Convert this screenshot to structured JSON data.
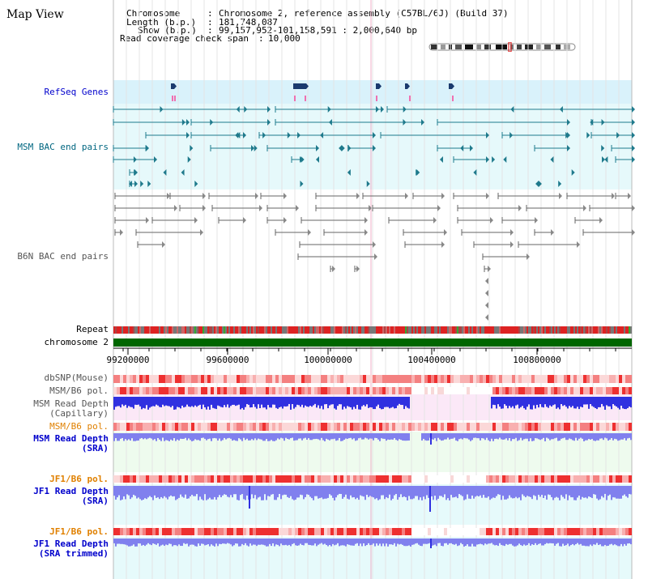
{
  "page": {
    "title": "Map View"
  },
  "info": {
    "chromosome_key": "Chromosome",
    "chromosome_val": "Chromosome 2, reference assembly (C57BL/6J) (Build 37)",
    "length_key": "Length (b.p.)",
    "length_val": "181,748,087",
    "show_key": "Show (b.p.)",
    "show_val": "99,157,952-101,158,591 : 2,000,640 bp",
    "read_key": "Read coverage check span",
    "read_val": "10,000"
  },
  "tracks": {
    "refseq": "RefSeq Genes",
    "msm_bac": "MSM BAC end pairs",
    "b6n_bac": "B6N BAC end pairs",
    "repeat": "Repeat",
    "chromosome": "chromosome 2",
    "dbsnp": "dbSNP(Mouse)",
    "msm_b6_pol_1": "MSM/B6 pol.",
    "msm_depth_cap_1": "MSM Read Depth",
    "msm_depth_cap_2": "(Capillary)",
    "msm_b6_pol_2": "MSM/B6 pol.",
    "msm_depth_sra_1": "MSM Read Depth",
    "msm_depth_sra_2": "(SRA)",
    "jf1_b6_pol_1": "JF1/B6 pol.",
    "jf1_depth_sra_1": "JF1 Read Depth",
    "jf1_depth_sra_2": "(SRA)",
    "jf1_b6_pol_2": "JF1/B6 pol.",
    "jf1_depth_trim_1": "JF1 Read Depth",
    "jf1_depth_trim_2": "(SRA trimmed)"
  },
  "ruler": {
    "ticks": [
      "99200000",
      "99600000",
      "100000000",
      "100400000",
      "100800000"
    ]
  },
  "colors": {
    "blue_label": "#0000cc",
    "teal_label": "#006680",
    "gray_label": "#555555",
    "orange_label": "#e08000",
    "refseq_bg": "#d9f2fb",
    "msm_bg": "#e6f9fb",
    "pink_bg": "#fbe8f7",
    "green_bg": "#eefbee",
    "cyan_bg": "#e6fafb",
    "gene_dark": "#1a3a6e",
    "msm_line": "#1f7a8c",
    "b6n_line": "#666666",
    "depth_blue": "#3030e0",
    "depth_light": "#8080ee",
    "pol_red": "#ee3030",
    "chrom_green": "#006600"
  }
}
